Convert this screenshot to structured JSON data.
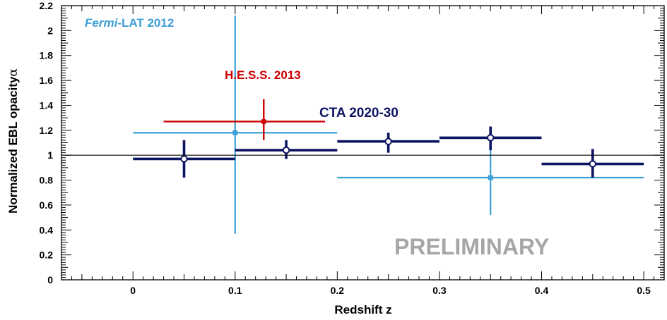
{
  "chart_data": {
    "type": "scatter",
    "xlabel": "Redshift z",
    "ylabel": "Normalized EBL opacity",
    "ylabel_symbol": "α",
    "xlim": [
      -0.07,
      0.52
    ],
    "ylim": [
      0,
      2.2
    ],
    "x_ticks": [
      "0",
      "0.1",
      "0.2",
      "0.3",
      "0.4",
      "0.5"
    ],
    "x_tick_values": [
      0,
      0.1,
      0.2,
      0.3,
      0.4,
      0.5
    ],
    "y_ticks": [
      "0",
      "0.2",
      "0.4",
      "0.6",
      "0.8",
      "1",
      "1.2",
      "1.4",
      "1.6",
      "1.8",
      "2",
      "2.2"
    ],
    "y_tick_values": [
      0,
      0.2,
      0.4,
      0.6,
      0.8,
      1.0,
      1.2,
      1.4,
      1.6,
      1.8,
      2.0,
      2.2
    ],
    "reference_line": 1.0,
    "grid": false,
    "watermark": "PRELIMINARY",
    "series": [
      {
        "name": "Fermi-LAT 2012",
        "name_italic_part": "Fermi",
        "name_rest": "-LAT 2012",
        "color": "#3f9fd6",
        "marker": "square",
        "points": [
          {
            "x": 0.1,
            "y": 1.18,
            "x_low": 0.0,
            "x_high": 0.2,
            "y_low": 0.37,
            "y_high": 2.12
          },
          {
            "x": 0.35,
            "y": 0.82,
            "x_low": 0.2,
            "x_high": 0.5,
            "y_low": 0.52,
            "y_high": 1.21
          }
        ]
      },
      {
        "name": "H.E.S.S. 2013",
        "color": "#cc0000",
        "marker": "circle",
        "points": [
          {
            "x": 0.128,
            "y": 1.27,
            "x_low": 0.03,
            "x_high": 0.188,
            "y_low": 1.12,
            "y_high": 1.45
          }
        ]
      },
      {
        "name": "CTA 2020-30",
        "color": "#0d1461",
        "marker": "open-circle",
        "points": [
          {
            "x": 0.05,
            "y": 0.97,
            "x_low": 0.0,
            "x_high": 0.1,
            "y_low": 0.82,
            "y_high": 1.12
          },
          {
            "x": 0.15,
            "y": 1.04,
            "x_low": 0.1,
            "x_high": 0.2,
            "y_low": 0.97,
            "y_high": 1.12
          },
          {
            "x": 0.25,
            "y": 1.11,
            "x_low": 0.2,
            "x_high": 0.3,
            "y_low": 1.02,
            "y_high": 1.18
          },
          {
            "x": 0.35,
            "y": 1.14,
            "x_low": 0.3,
            "x_high": 0.4,
            "y_low": 1.04,
            "y_high": 1.23
          },
          {
            "x": 0.45,
            "y": 0.93,
            "x_low": 0.4,
            "x_high": 0.5,
            "y_low": 0.82,
            "y_high": 1.05
          }
        ]
      }
    ]
  }
}
